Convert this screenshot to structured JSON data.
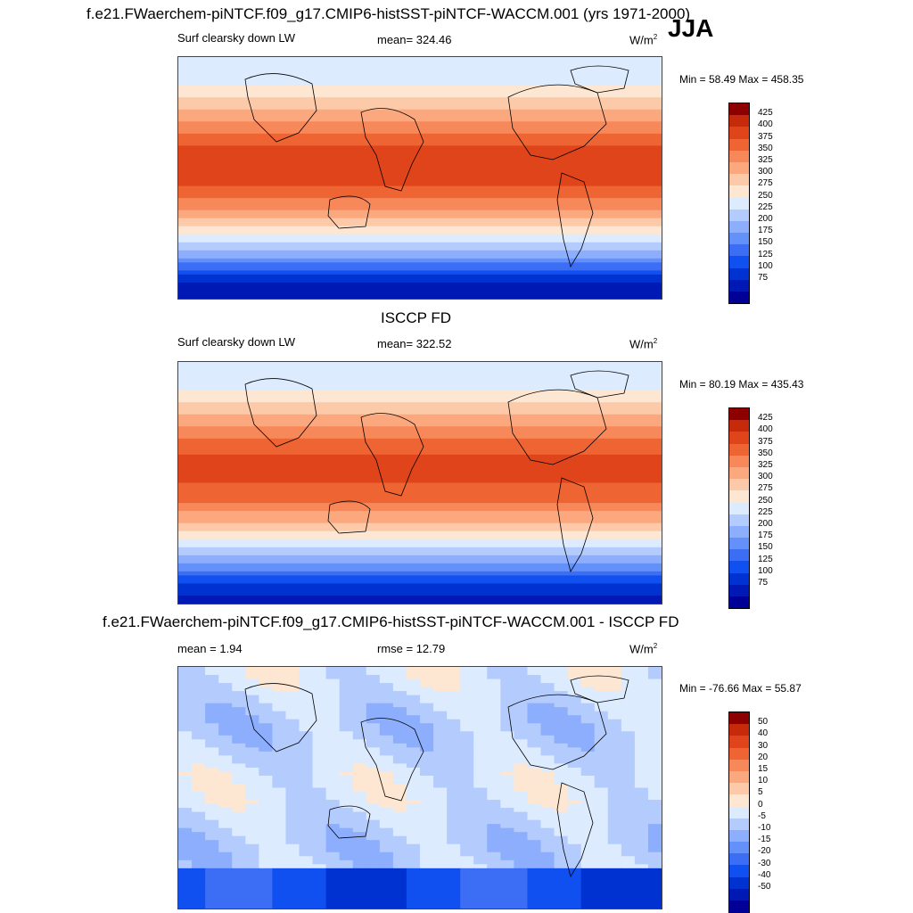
{
  "header": {
    "title": "f.e21.FWaerchem-piNTCF.f09_g17.CMIP6-histSST-piNTCF-WACCM.001 (yrs 1971-2000)",
    "season": "JJA"
  },
  "panels": [
    {
      "id": "model",
      "title": "",
      "left_label": "Surf clearsky down LW",
      "center_label": "mean= 324.46",
      "units": "W/m",
      "units_sup": "2",
      "minmax": "Min =  58.49 Max = 458.35",
      "colorbar": {
        "colors": [
          "#000096",
          "#0019b4",
          "#0032d2",
          "#1050f0",
          "#3c6ef5",
          "#6490fa",
          "#8caefc",
          "#b4ccfd",
          "#dcebfe",
          "#fde6d2",
          "#fccaa8",
          "#fca87f",
          "#f7885a",
          "#ee6432",
          "#e0441a",
          "#c52a0a",
          "#8c0000"
        ],
        "labels": [
          "425",
          "400",
          "375",
          "350",
          "325",
          "300",
          "275",
          "250",
          "225",
          "200",
          "175",
          "150",
          "125",
          "100",
          "75"
        ]
      }
    },
    {
      "id": "obs",
      "title": "ISCCP FD",
      "left_label": "Surf clearsky down LW",
      "center_label": "mean= 322.52",
      "units": "W/m",
      "units_sup": "2",
      "minmax": "Min =  80.19 Max = 435.43",
      "colorbar": {
        "colors": [
          "#000096",
          "#0019b4",
          "#0032d2",
          "#1050f0",
          "#3c6ef5",
          "#6490fa",
          "#8caefc",
          "#b4ccfd",
          "#dcebfe",
          "#fde6d2",
          "#fccaa8",
          "#fca87f",
          "#f7885a",
          "#ee6432",
          "#e0441a",
          "#c52a0a",
          "#8c0000"
        ],
        "labels": [
          "425",
          "400",
          "375",
          "350",
          "325",
          "300",
          "275",
          "250",
          "225",
          "200",
          "175",
          "150",
          "125",
          "100",
          "75"
        ]
      }
    },
    {
      "id": "diff",
      "title": "f.e21.FWaerchem-piNTCF.f09_g17.CMIP6-histSST-piNTCF-WACCM.001 - ISCCP FD",
      "left_label": "mean =   1.94",
      "center_label": "rmse =  12.79",
      "units": "W/m",
      "units_sup": "2",
      "minmax": "Min = -76.66 Max =  55.87",
      "colorbar": {
        "colors": [
          "#000096",
          "#0019b4",
          "#0032d2",
          "#1050f0",
          "#3c6ef5",
          "#6490fa",
          "#8caefc",
          "#b4ccfd",
          "#dcebfe",
          "#fde6d2",
          "#fccaa8",
          "#fca87f",
          "#f7885a",
          "#ee6432",
          "#e0441a",
          "#c52a0a",
          "#8c0000"
        ],
        "labels": [
          "50",
          "40",
          "30",
          "20",
          "15",
          "10",
          "5",
          "0",
          "-5",
          "-10",
          "-15",
          "-20",
          "-30",
          "-40",
          "-50"
        ]
      }
    }
  ],
  "chart_data": [
    {
      "type": "heatmap",
      "title": "Surf clearsky down LW",
      "units": "W/m2",
      "mean": 324.46,
      "min": 58.49,
      "max": 458.35,
      "xlim": [
        0,
        360
      ],
      "ylim": [
        -90,
        90
      ],
      "zonal_mean_profile": {
        "lat": [
          -90,
          -75,
          -60,
          -45,
          -30,
          -15,
          0,
          15,
          30,
          45,
          60,
          75,
          90
        ],
        "value": [
          75,
          110,
          200,
          265,
          320,
          380,
          410,
          420,
          385,
          345,
          300,
          250,
          250
        ]
      }
    },
    {
      "type": "heatmap",
      "title": "ISCCP FD",
      "units": "W/m2",
      "mean": 322.52,
      "min": 80.19,
      "max": 435.43,
      "xlim": [
        0,
        360
      ],
      "ylim": [
        -90,
        90
      ],
      "zonal_mean_profile": {
        "lat": [
          -90,
          -75,
          -60,
          -45,
          -30,
          -15,
          0,
          15,
          30,
          45,
          60,
          75,
          90
        ],
        "value": [
          90,
          120,
          205,
          265,
          320,
          375,
          400,
          410,
          380,
          345,
          300,
          255,
          255
        ]
      }
    },
    {
      "type": "heatmap",
      "title": "f.e21.FWaerchem-piNTCF.f09_g17.CMIP6-histSST-piNTCF-WACCM.001 - ISCCP FD",
      "units": "W/m2",
      "mean": 1.94,
      "rmse": 12.79,
      "min": -76.66,
      "max": 55.87,
      "xlim": [
        0,
        360
      ],
      "ylim": [
        -90,
        90
      ]
    }
  ]
}
